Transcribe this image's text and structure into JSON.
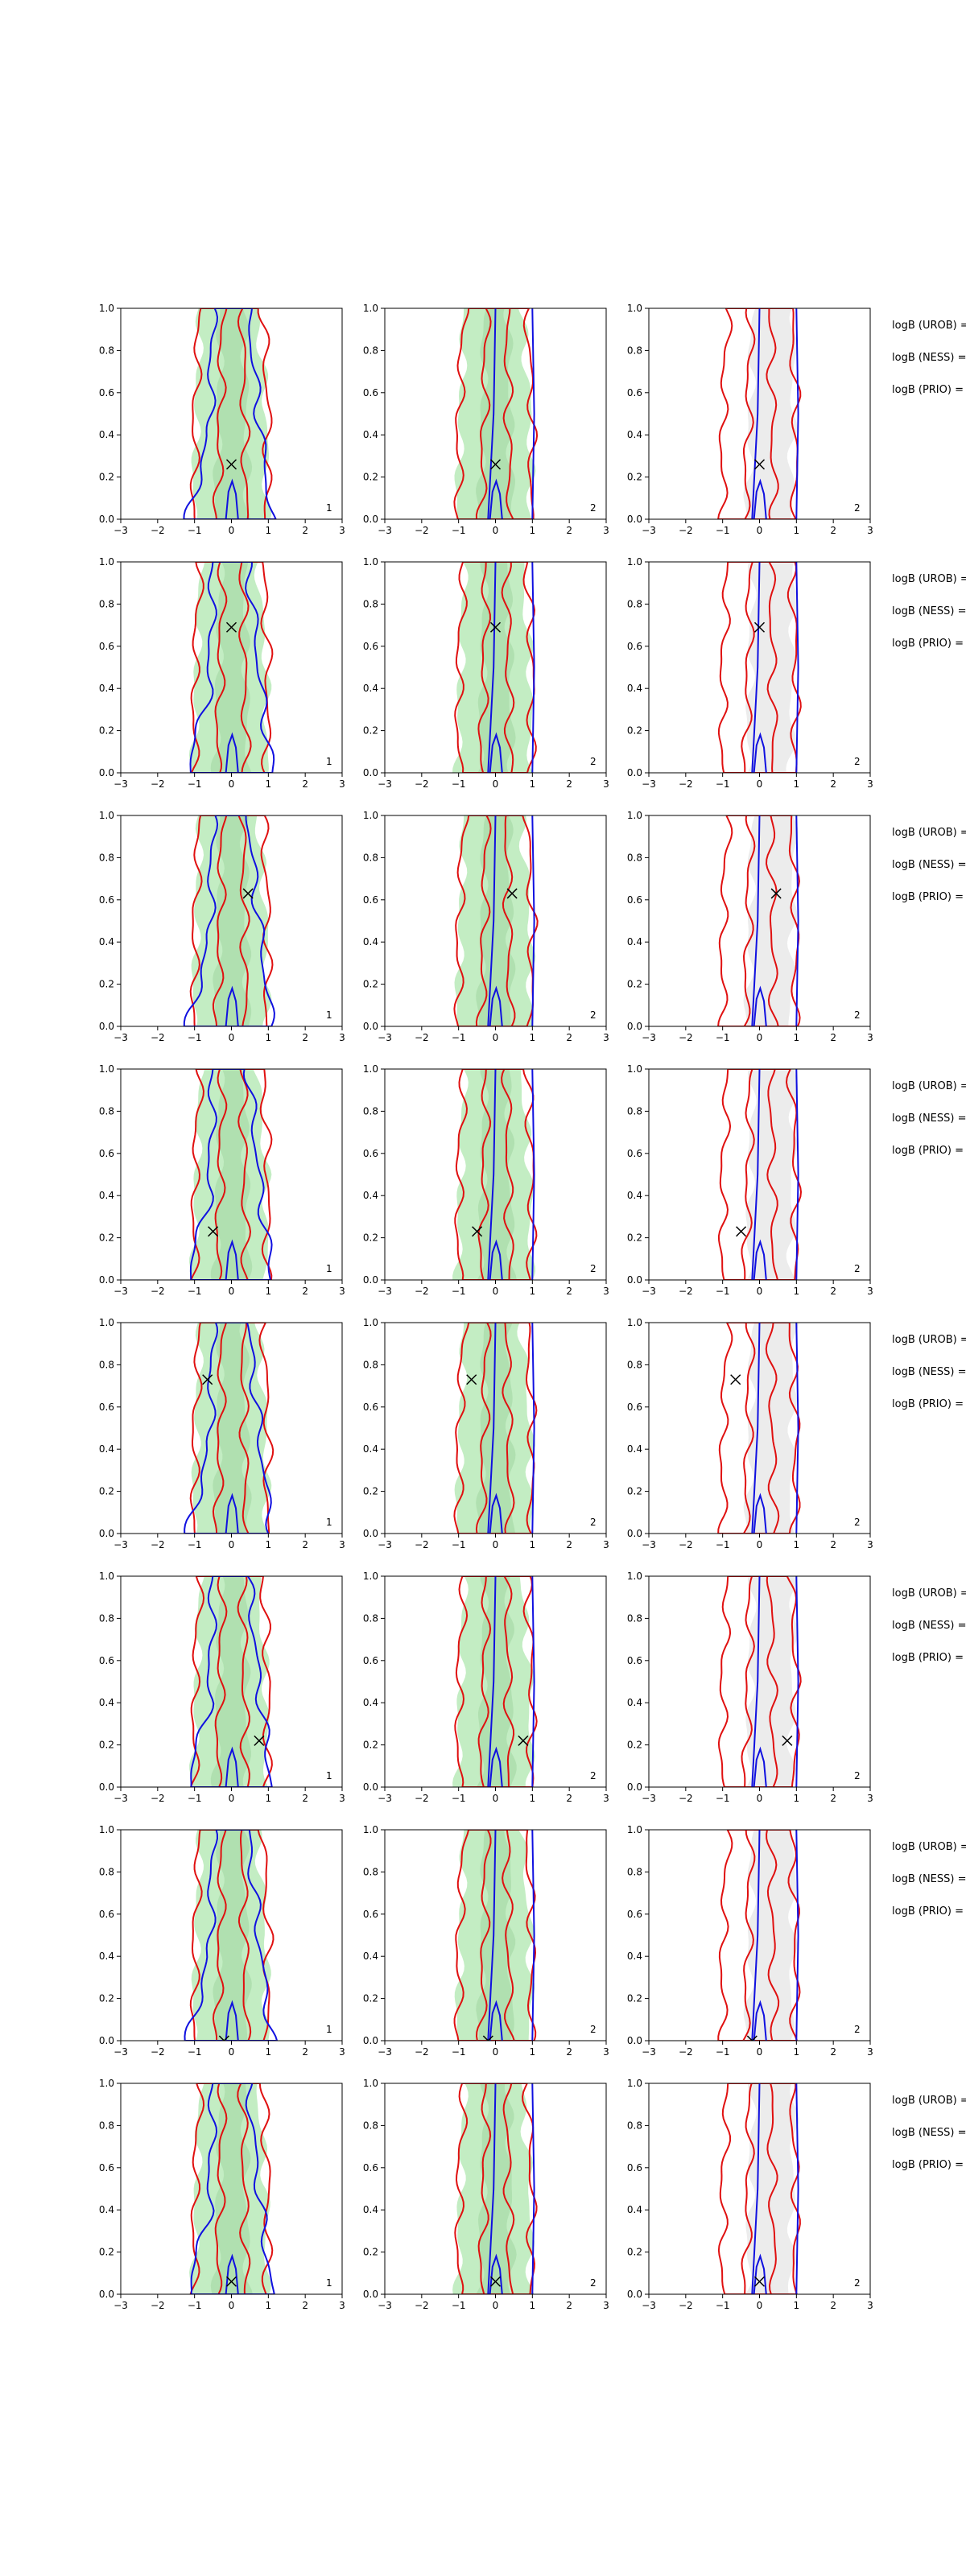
{
  "figure": {
    "colors": {
      "green_fill": "#b9eab9",
      "green_dark": "#9dd49d",
      "gray_fill": "#ececec",
      "red": "#e01010",
      "blue": "#1010e0",
      "axis": "#000000"
    }
  },
  "logb_labels": [
    "logB (UROB) =",
    "logB (NESS) =",
    "logB (PRIO) ="
  ],
  "chart_data": {
    "type": "contour",
    "grid": {
      "rows": 8,
      "cols": 3
    },
    "xlim": [
      -3,
      3
    ],
    "ylim": [
      0.0,
      1.0
    ],
    "x_ticks": [
      "−3",
      "−2",
      "−1",
      "0",
      "1",
      "2",
      "3"
    ],
    "y_ticks": [
      "0.0",
      "0.2",
      "0.4",
      "0.6",
      "0.8",
      "1.0"
    ],
    "grid_lines": false,
    "panel_numbers": [
      "1",
      "2",
      "2"
    ],
    "markers": [
      {
        "row": 1,
        "x": 0.0,
        "y": 0.26
      },
      {
        "row": 2,
        "x": 0.0,
        "y": 0.69
      },
      {
        "row": 3,
        "x": 0.45,
        "y": 0.63
      },
      {
        "row": 4,
        "x": -0.5,
        "y": 0.23
      },
      {
        "row": 5,
        "x": -0.65,
        "y": 0.73
      },
      {
        "row": 6,
        "x": 0.75,
        "y": 0.22
      },
      {
        "row": 7,
        "x": -0.2,
        "y": 0.0
      },
      {
        "row": 8,
        "x": 0.0,
        "y": 0.06
      }
    ]
  }
}
